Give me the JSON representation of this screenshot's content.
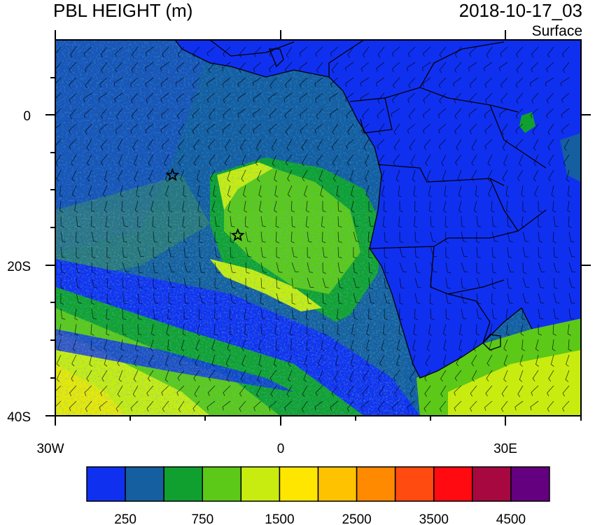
{
  "title": "PBL HEIGHT (m)",
  "timestamp": "2018-10-17_03",
  "level": "Surface",
  "map": {
    "lon_range": [
      -30,
      40
    ],
    "lat_range": [
      -40,
      10
    ],
    "lon_ticks": [
      {
        "value": -30,
        "label": "30W"
      },
      {
        "value": 0,
        "label": "0"
      },
      {
        "value": 30,
        "label": "30E"
      }
    ],
    "lat_ticks": [
      {
        "value": 0,
        "label": "0"
      },
      {
        "value": -20,
        "label": "20S"
      },
      {
        "value": -40,
        "label": "40S"
      }
    ],
    "markers": [
      {
        "name": "star-marker-ascension-region",
        "lon": -14.4,
        "lat": -8.0
      },
      {
        "name": "star-marker-st-helena-region",
        "lon": -5.7,
        "lat": -16.0
      }
    ]
  },
  "colorbar": {
    "colors": [
      "#1030f0",
      "#155ea0",
      "#10a030",
      "#5cc818",
      "#c8ec10",
      "#ffe600",
      "#ffc200",
      "#ff8a00",
      "#ff4a10",
      "#ff0a10",
      "#a80840",
      "#640080"
    ],
    "labels": [
      "250",
      "750",
      "1500",
      "2500",
      "3500",
      "4500"
    ]
  }
}
